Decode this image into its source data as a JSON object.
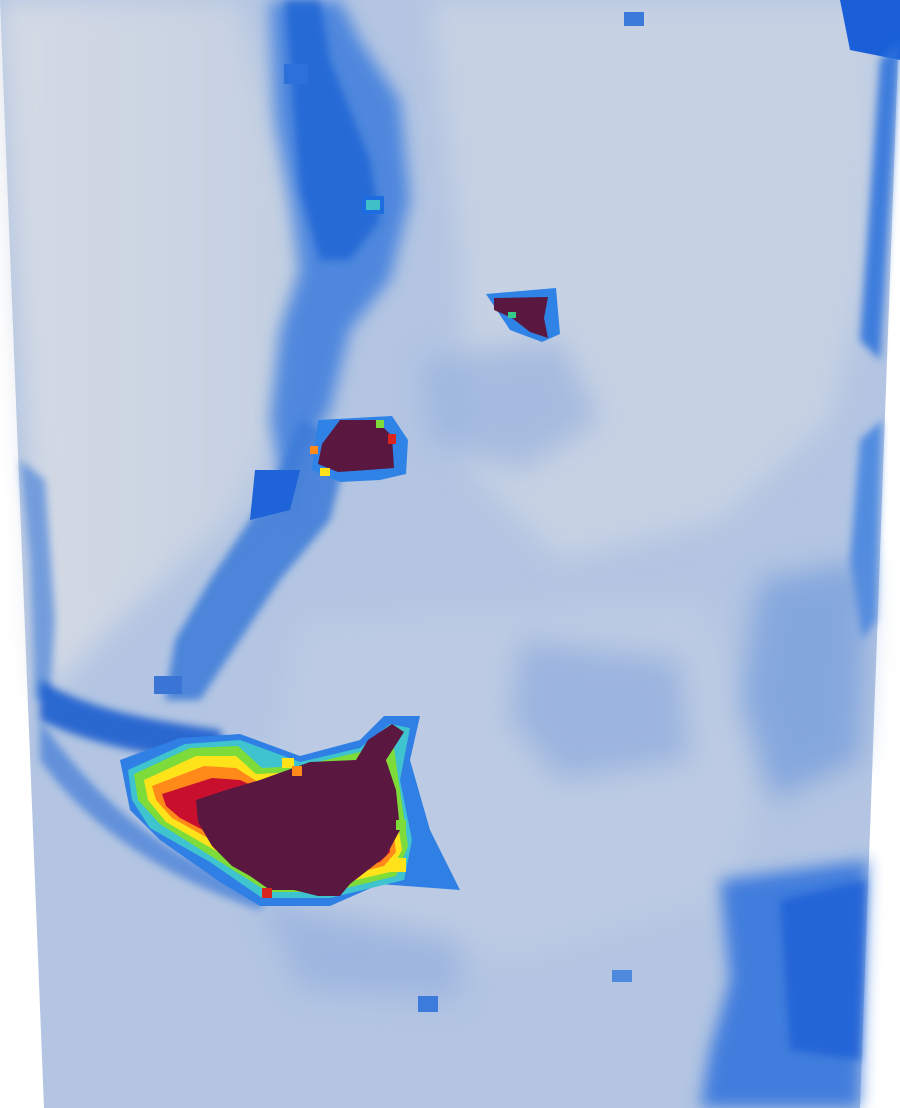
{
  "image": {
    "kind": "scalar-field-heatmap-render",
    "colormap": {
      "low": "#c9d3e3",
      "mid_low": "#a8bfe0",
      "mid": "#2f6fd6",
      "mid_high": "#1f5ec9",
      "cyan": "#35c3d6",
      "green": "#7ddc3a",
      "yellow": "#ffe31a",
      "orange": "#ff8a1a",
      "red": "#c8102e",
      "high": "#5a1840"
    },
    "background": "#ffffff",
    "regions": [
      {
        "name": "lower-left-hotspot",
        "level": "high"
      },
      {
        "name": "middle-hotspot",
        "level": "high"
      },
      {
        "name": "upper-right-hotspot",
        "level": "high"
      }
    ]
  }
}
